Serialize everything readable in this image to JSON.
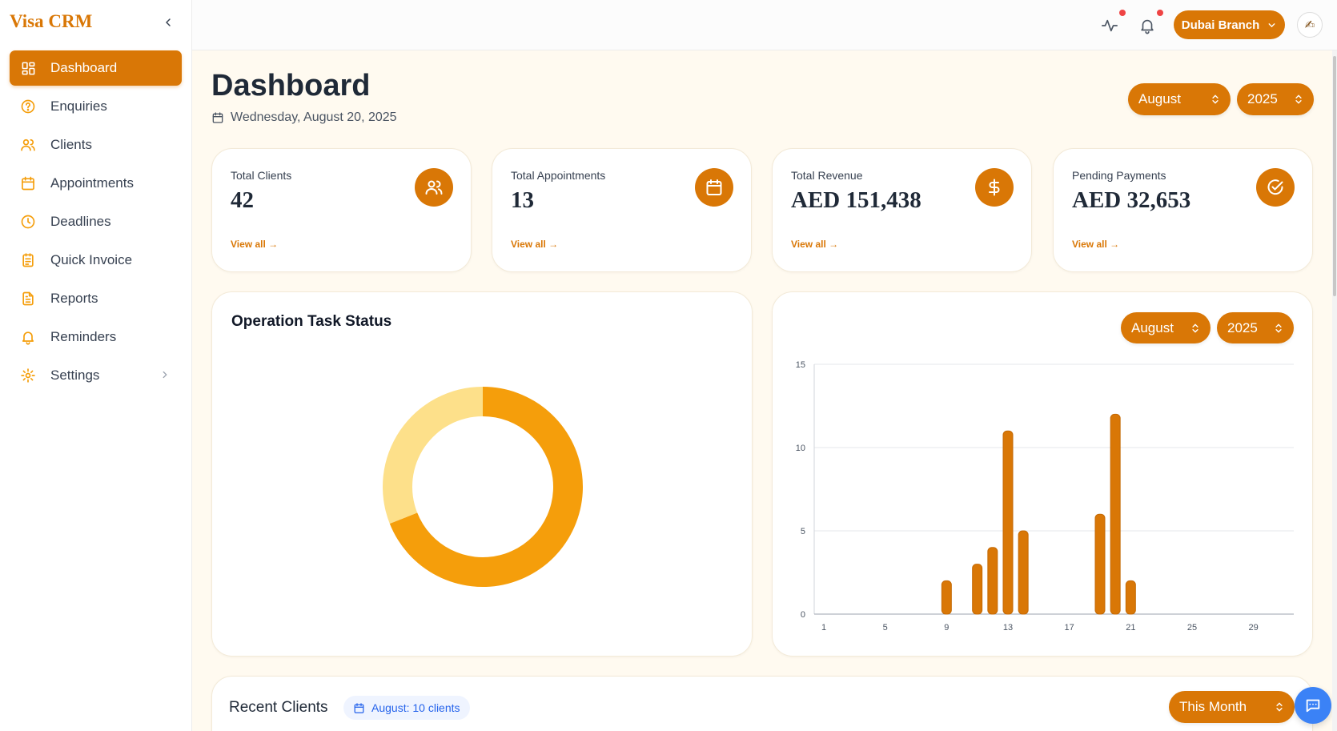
{
  "app": {
    "brand": "Visa CRM"
  },
  "sidebar": {
    "items": [
      {
        "label": "Dashboard",
        "icon": "dashboard-icon",
        "active": true
      },
      {
        "label": "Enquiries",
        "icon": "question-circle-icon"
      },
      {
        "label": "Clients",
        "icon": "users-icon"
      },
      {
        "label": "Appointments",
        "icon": "calendar-icon"
      },
      {
        "label": "Deadlines",
        "icon": "clock-icon"
      },
      {
        "label": "Quick Invoice",
        "icon": "invoice-icon"
      },
      {
        "label": "Reports",
        "icon": "document-icon"
      },
      {
        "label": "Reminders",
        "icon": "bell-icon"
      },
      {
        "label": "Settings",
        "icon": "gear-icon",
        "has_submenu": true
      }
    ]
  },
  "topbar": {
    "branch": "Dubai Branch",
    "icons": [
      "activity-icon",
      "bell-icon"
    ],
    "notification_color": "#ef4444"
  },
  "page": {
    "title": "Dashboard",
    "date": "Wednesday, August 20, 2025",
    "month_select": "August",
    "year_select": "2025"
  },
  "stats": [
    {
      "label": "Total Clients",
      "value": "42",
      "link": "View all →",
      "icon": "users-icon"
    },
    {
      "label": "Total Appointments",
      "value": "13",
      "link": "View all →",
      "icon": "calendar-icon"
    },
    {
      "label": "Total Revenue",
      "value": "AED 151,438",
      "link": "View all →",
      "icon": "dollar-icon"
    },
    {
      "label": "Pending Payments",
      "value": "AED 32,653",
      "link": "View all →",
      "icon": "check-circle-icon"
    }
  ],
  "task_panel": {
    "title": "Operation Task Status"
  },
  "bar_panel": {
    "month_select": "August",
    "year_select": "2025"
  },
  "chart_data": [
    {
      "type": "pie",
      "title": "Operation Task Status",
      "values": [
        69,
        31
      ],
      "colors": [
        "#f59e0b",
        "#fde08a"
      ]
    },
    {
      "type": "bar",
      "x": [
        1,
        2,
        3,
        4,
        5,
        6,
        7,
        8,
        9,
        10,
        11,
        12,
        13,
        14,
        15,
        16,
        17,
        18,
        19,
        20,
        21,
        22,
        23,
        24,
        25,
        26,
        27,
        28,
        29,
        30,
        31
      ],
      "values": [
        0,
        0,
        0,
        0,
        0,
        0,
        0,
        0,
        2,
        0,
        3,
        4,
        11,
        5,
        0,
        0,
        0,
        0,
        6,
        12,
        2,
        0,
        0,
        0,
        0,
        0,
        0,
        0,
        0,
        0,
        0
      ],
      "xticks": [
        "1",
        "5",
        "9",
        "13",
        "17",
        "21",
        "25",
        "29"
      ],
      "yticks": [
        "0",
        "5",
        "10",
        "15"
      ],
      "ylim": [
        0,
        15
      ],
      "grid": true,
      "color": "#d97706"
    }
  ],
  "recent": {
    "title": "Recent Clients",
    "badge": "August: 10 clients",
    "filter": "This Month"
  },
  "colors": {
    "accent": "#d97706",
    "accent_light": "#f59e0b",
    "chat": "#3b82f6"
  }
}
